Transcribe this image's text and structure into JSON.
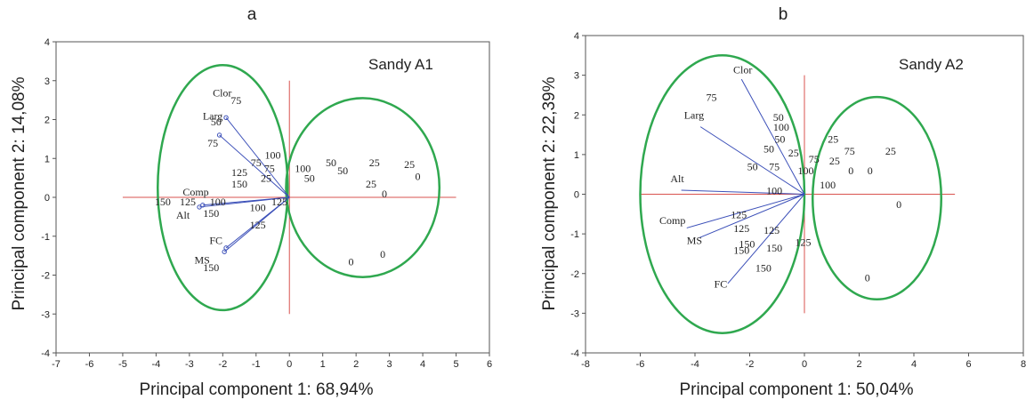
{
  "colors": {
    "vectors": "#3b4fb8",
    "axes_ref": "#d9534f",
    "ellipse": "#2fa84f",
    "frame": "#555555"
  },
  "chart_data": [
    {
      "type": "scatter",
      "panel_label": "a",
      "inset_title": "Sandy A1",
      "xlabel": "Principal component 1: 68,94%",
      "ylabel": "Principal component 2: 14,08%",
      "xlim": [
        -7,
        6
      ],
      "ylim": [
        -4,
        4
      ],
      "xticks": [
        -7,
        -6,
        -5,
        -4,
        -3,
        -2,
        -1,
        0,
        1,
        2,
        3,
        4,
        5,
        6
      ],
      "yticks": [
        -4,
        -3,
        -2,
        -1,
        0,
        1,
        2,
        3,
        4
      ],
      "vectors": [
        {
          "name": "Clor",
          "x": -1.9,
          "y": 2.05,
          "lx": -2.3,
          "ly": 2.6
        },
        {
          "name": "Larg",
          "x": -2.1,
          "y": 1.6,
          "lx": -2.6,
          "ly": 2.0
        },
        {
          "name": "Comp",
          "x": -2.6,
          "y": -0.2,
          "lx": -3.2,
          "ly": 0.05
        },
        {
          "name": "Alt",
          "x": -2.7,
          "y": -0.25,
          "lx": -3.4,
          "ly": -0.55
        },
        {
          "name": "FC",
          "x": -1.9,
          "y": -1.3,
          "lx": -2.4,
          "ly": -1.2
        },
        {
          "name": "MS",
          "x": -1.95,
          "y": -1.4,
          "lx": -2.85,
          "ly": -1.7
        }
      ],
      "points": [
        {
          "label": "75",
          "x": -1.6,
          "y": 2.4
        },
        {
          "label": "50",
          "x": -2.2,
          "y": 1.85
        },
        {
          "label": "75",
          "x": -2.3,
          "y": 1.3
        },
        {
          "label": "100",
          "x": -0.5,
          "y": 1.0
        },
        {
          "label": "75",
          "x": -1.0,
          "y": 0.8
        },
        {
          "label": "75",
          "x": -0.6,
          "y": 0.65
        },
        {
          "label": "125",
          "x": -1.5,
          "y": 0.55
        },
        {
          "label": "25",
          "x": -0.7,
          "y": 0.4
        },
        {
          "label": "150",
          "x": -1.5,
          "y": 0.25
        },
        {
          "label": "100",
          "x": 0.4,
          "y": 0.65
        },
        {
          "label": "50",
          "x": 0.6,
          "y": 0.4
        },
        {
          "label": "50",
          "x": 1.25,
          "y": 0.8
        },
        {
          "label": "50",
          "x": 1.6,
          "y": 0.6
        },
        {
          "label": "25",
          "x": 2.55,
          "y": 0.8
        },
        {
          "label": "25",
          "x": 3.6,
          "y": 0.75
        },
        {
          "label": "0",
          "x": 3.85,
          "y": 0.45
        },
        {
          "label": "25",
          "x": 2.45,
          "y": 0.25
        },
        {
          "label": "0",
          "x": 2.85,
          "y": 0.0
        },
        {
          "label": "150",
          "x": -3.8,
          "y": -0.2
        },
        {
          "label": "125",
          "x": -3.05,
          "y": -0.2
        },
        {
          "label": "100",
          "x": -2.15,
          "y": -0.2
        },
        {
          "label": "150",
          "x": -2.35,
          "y": -0.5
        },
        {
          "label": "100",
          "x": -0.95,
          "y": -0.35
        },
        {
          "label": "125",
          "x": -0.3,
          "y": -0.2
        },
        {
          "label": "125",
          "x": -0.95,
          "y": -0.8
        },
        {
          "label": "150",
          "x": -2.35,
          "y": -1.9
        },
        {
          "label": "0",
          "x": 2.8,
          "y": -1.55
        },
        {
          "label": "0",
          "x": 1.85,
          "y": -1.75
        }
      ],
      "ellipses": [
        {
          "cx": -2.0,
          "cy": 0.25,
          "rx": 1.95,
          "ry": 3.15
        },
        {
          "cx": 2.2,
          "cy": 0.25,
          "rx": 2.3,
          "ry": 2.3
        }
      ]
    },
    {
      "type": "scatter",
      "panel_label": "b",
      "inset_title": "Sandy A2",
      "xlabel": "Principal component 1: 50,04%",
      "ylabel": "Principal component 2: 22,39%",
      "xlim": [
        -8,
        8
      ],
      "ylim": [
        -4,
        4
      ],
      "xticks": [
        -8,
        -6,
        -4,
        -2,
        0,
        2,
        4,
        6,
        8
      ],
      "yticks": [
        -4,
        -3,
        -2,
        -1,
        0,
        1,
        2,
        3,
        4
      ],
      "vectors": [
        {
          "name": "Clor",
          "x": -2.3,
          "y": 2.9,
          "lx": -2.6,
          "ly": 3.05
        },
        {
          "name": "Larg",
          "x": -3.8,
          "y": 1.7,
          "lx": -4.4,
          "ly": 1.9
        },
        {
          "name": "Alt",
          "x": -4.5,
          "y": 0.1,
          "lx": -4.9,
          "ly": 0.3
        },
        {
          "name": "Comp",
          "x": -4.3,
          "y": -0.85,
          "lx": -5.3,
          "ly": -0.75
        },
        {
          "name": "MS",
          "x": -3.85,
          "y": -1.1,
          "lx": -4.3,
          "ly": -1.25
        },
        {
          "name": "FC",
          "x": -2.8,
          "y": -2.25,
          "lx": -3.3,
          "ly": -2.35
        }
      ],
      "points": [
        {
          "label": "75",
          "x": -3.4,
          "y": 2.35
        },
        {
          "label": "50",
          "x": -0.95,
          "y": 1.85
        },
        {
          "label": "100",
          "x": -0.85,
          "y": 1.6
        },
        {
          "label": "50",
          "x": -0.9,
          "y": 1.3
        },
        {
          "label": "25",
          "x": -0.4,
          "y": 0.95
        },
        {
          "label": "50",
          "x": -1.3,
          "y": 1.05
        },
        {
          "label": "50",
          "x": -1.9,
          "y": 0.6
        },
        {
          "label": "75",
          "x": -1.1,
          "y": 0.6
        },
        {
          "label": "75",
          "x": 0.35,
          "y": 0.8
        },
        {
          "label": "25",
          "x": 1.05,
          "y": 1.3
        },
        {
          "label": "75",
          "x": 1.65,
          "y": 1.0
        },
        {
          "label": "25",
          "x": 1.1,
          "y": 0.75
        },
        {
          "label": "0",
          "x": 1.7,
          "y": 0.5
        },
        {
          "label": "100",
          "x": 0.05,
          "y": 0.5
        },
        {
          "label": "25",
          "x": 3.15,
          "y": 1.0
        },
        {
          "label": "0",
          "x": 2.4,
          "y": 0.5
        },
        {
          "label": "100",
          "x": 0.85,
          "y": 0.15
        },
        {
          "label": "100",
          "x": -1.1,
          "y": 0.0
        },
        {
          "label": "0",
          "x": 3.45,
          "y": -0.35
        },
        {
          "label": "125",
          "x": -2.4,
          "y": -0.6
        },
        {
          "label": "125",
          "x": -1.2,
          "y": -1.0
        },
        {
          "label": "125",
          "x": -2.3,
          "y": -0.95
        },
        {
          "label": "150",
          "x": -2.1,
          "y": -1.35
        },
        {
          "label": "125",
          "x": -0.05,
          "y": -1.3
        },
        {
          "label": "150",
          "x": -2.3,
          "y": -1.5
        },
        {
          "label": "150",
          "x": -1.1,
          "y": -1.45
        },
        {
          "label": "150",
          "x": -1.5,
          "y": -1.95
        },
        {
          "label": "0",
          "x": 2.3,
          "y": -2.2
        }
      ],
      "ellipses": [
        {
          "cx": -3.0,
          "cy": 0.0,
          "rx": 3.0,
          "ry": 3.5
        },
        {
          "cx": 2.65,
          "cy": -0.1,
          "rx": 2.35,
          "ry": 2.55
        }
      ]
    }
  ]
}
